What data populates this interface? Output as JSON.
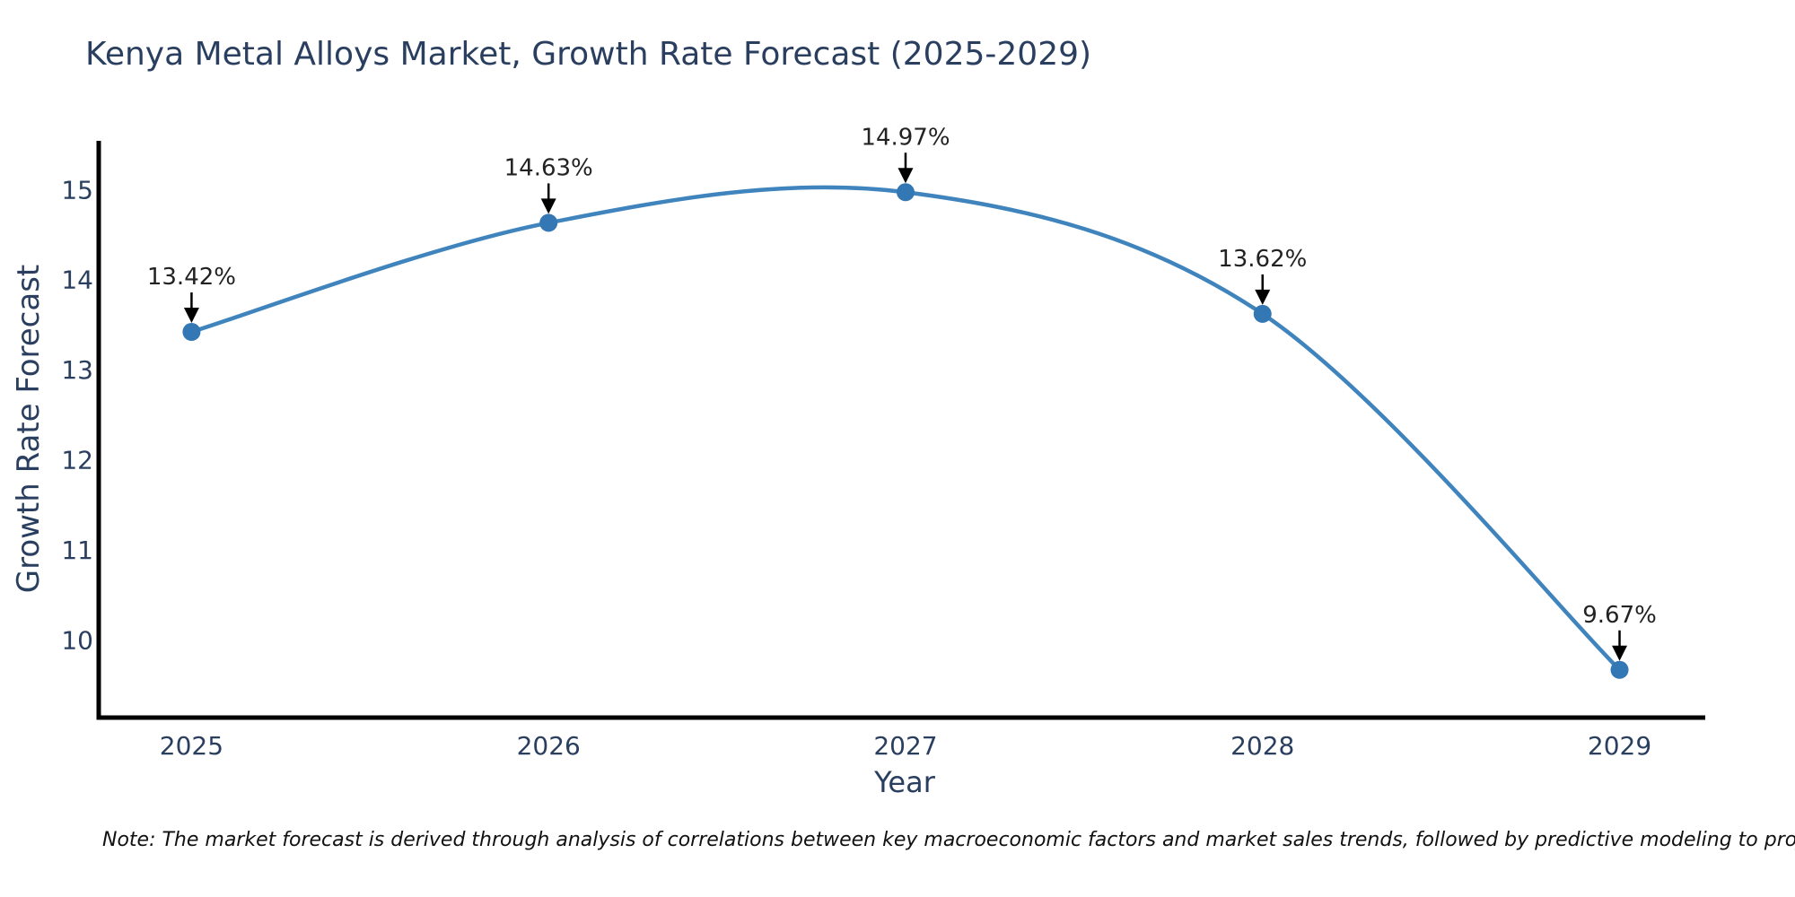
{
  "chart_data": {
    "type": "line",
    "title": "Kenya Metal Alloys Market, Growth Rate Forecast (2025-2029)",
    "xlabel": "Year",
    "ylabel": "Growth Rate Forecast",
    "x": [
      2025,
      2026,
      2027,
      2028,
      2029
    ],
    "values": [
      13.42,
      14.63,
      14.97,
      13.62,
      9.67
    ],
    "point_labels": [
      "13.42%",
      "14.63%",
      "14.97%",
      "13.62%",
      "9.67%"
    ],
    "xticks": [
      "2025",
      "2026",
      "2027",
      "2028",
      "2029"
    ],
    "yticks": [
      10,
      11,
      12,
      13,
      14,
      15
    ],
    "xlim": [
      2024.74,
      2029.24
    ],
    "ylim": [
      9.14,
      15.54
    ],
    "grid": false,
    "legend": false,
    "smooth": true,
    "line_color": "#3f84bd",
    "marker_color": "#3377b5",
    "spine_color": "#000000",
    "axis_text_color": "#2a3f5f",
    "annotation_color": "#222222",
    "note": "Note: The market forecast is derived through analysis of correlations between key macroeconomic factors and market sales trends, followed by predictive modeling to project future sales"
  }
}
